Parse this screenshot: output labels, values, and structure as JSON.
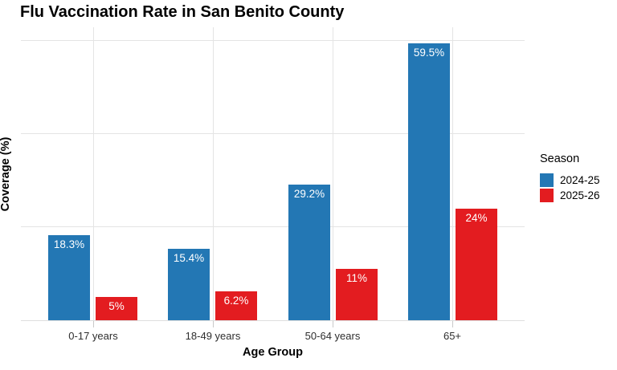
{
  "title": "Flu Vaccination Rate in San Benito County",
  "axes": {
    "x_label": "Age Group",
    "y_label": "Coverage (%)"
  },
  "legend": {
    "title": "Season",
    "entries": [
      {
        "label": "2024-25",
        "color": "#2377b4"
      },
      {
        "label": "2025-26",
        "color": "#e31c20"
      }
    ]
  },
  "colors": {
    "background": "#ffffff",
    "gridline": "#e4e4e4",
    "axis_line": "#dedede",
    "bar_label_text": "#ffffff",
    "series_2024_25": "#2377b4",
    "series_2025_26": "#e31c20"
  },
  "chart_data": {
    "type": "bar",
    "title": "Flu Vaccination Rate in San Benito County",
    "xlabel": "Age Group",
    "ylabel": "Coverage (%)",
    "categories": [
      "0-17 years",
      "18-49 years",
      "50-64 years",
      "65+"
    ],
    "series": [
      {
        "name": "2024-25",
        "color": "#2377b4",
        "values": [
          18.3,
          15.4,
          29.2,
          59.5
        ],
        "data_labels": [
          "18.3%",
          "15.4%",
          "29.2%",
          "59.5%"
        ]
      },
      {
        "name": "2025-26",
        "color": "#e31c20",
        "values": [
          5,
          6.2,
          11,
          24
        ],
        "data_labels": [
          "5%",
          "6.2%",
          "11%",
          "24%"
        ]
      }
    ],
    "ylim": [
      0,
      62.5
    ],
    "y_gridlines": [
      20,
      40,
      60
    ],
    "y_tick_labels_shown": false,
    "grid": true,
    "legend_position": "right",
    "legend_title": "Season"
  }
}
